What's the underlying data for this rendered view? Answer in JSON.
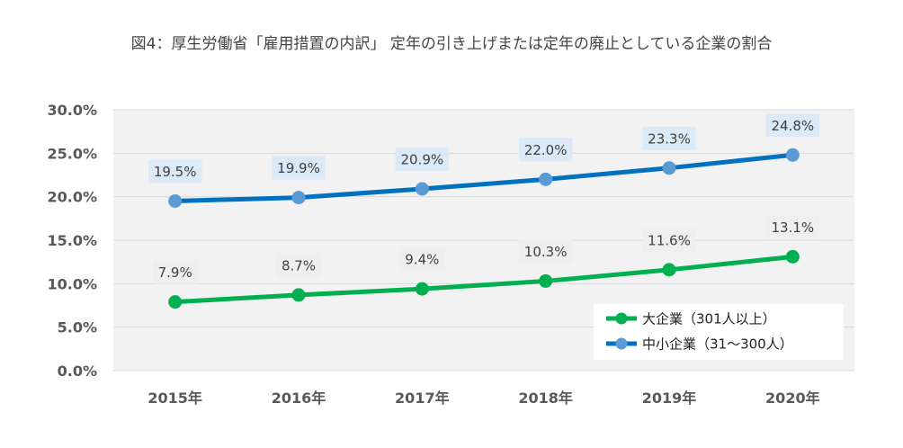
{
  "chart_data": {
    "type": "line",
    "title": "図4：厚生労働省「雇用措置の内訳」 定年の引き上げまたは定年の廃止としている企業の割合",
    "categories": [
      "2015年",
      "2016年",
      "2017年",
      "2018年",
      "2019年",
      "2020年"
    ],
    "y_ticks": [
      "0.0%",
      "5.0%",
      "10.0%",
      "15.0%",
      "20.0%",
      "25.0%",
      "30.0%"
    ],
    "ylim": [
      0,
      30
    ],
    "grid": true,
    "legend_position": "bottom-right",
    "series": [
      {
        "name": "大企業（301人以上）",
        "values": [
          7.9,
          8.7,
          9.4,
          10.3,
          11.6,
          13.1
        ],
        "labels": [
          "7.9%",
          "8.7%",
          "9.4%",
          "10.3%",
          "11.6%",
          "13.1%"
        ],
        "line_color": "#00B050",
        "marker_color": "#00B050",
        "label_bg": "#EFEFEF"
      },
      {
        "name": "中小企業（31～300人）",
        "values": [
          19.5,
          19.9,
          20.9,
          22.0,
          23.3,
          24.8
        ],
        "labels": [
          "19.5%",
          "19.9%",
          "20.9%",
          "22.0%",
          "23.3%",
          "24.8%"
        ],
        "line_color": "#0070C0",
        "marker_color": "#5B9BD5",
        "label_bg": "#DCE9F6"
      }
    ]
  }
}
